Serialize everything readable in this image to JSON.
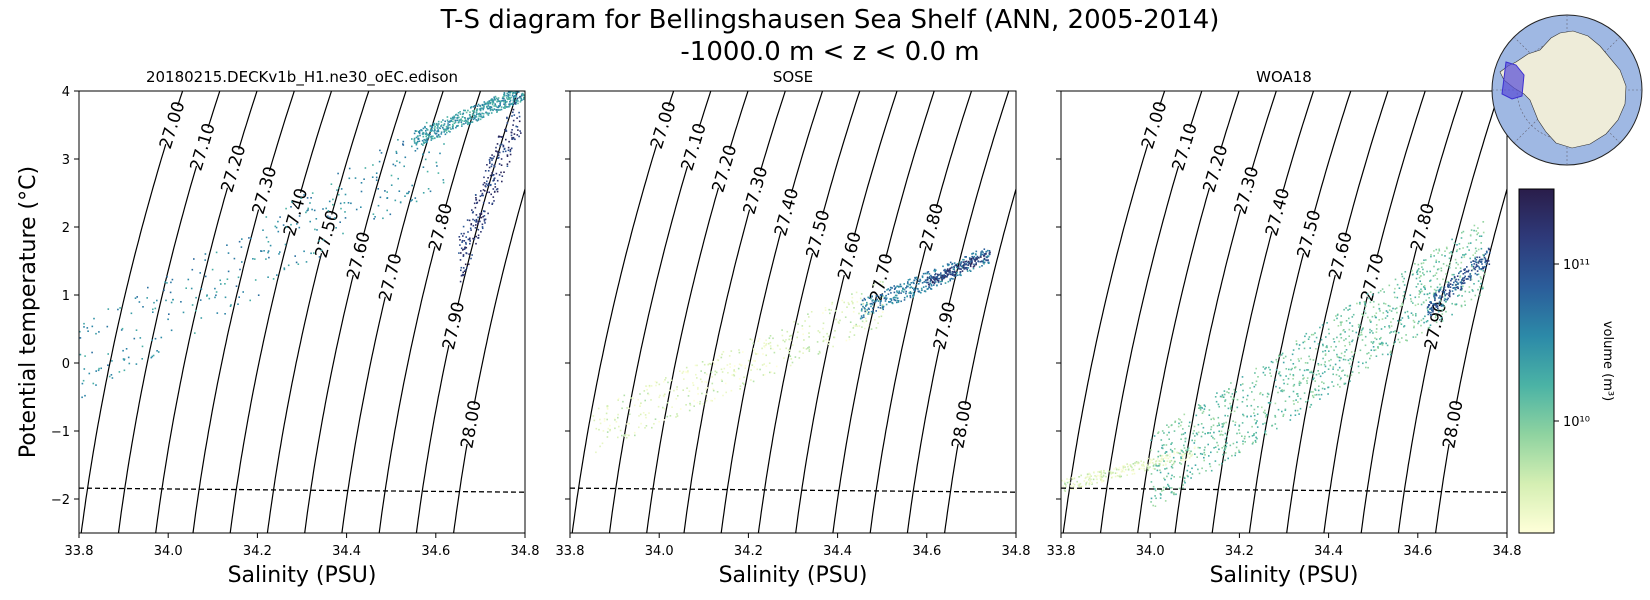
{
  "figure": {
    "title_line1": "T-S diagram for Bellingshausen Sea Shelf (ANN, 2005-2014)",
    "title_line2": "-1000.0 m < z < 0.0 m"
  },
  "chart_data": [
    {
      "type": "scatter",
      "title": "20180215.DECKv1b_H1.ne30_oEC.edison",
      "xlabel": "Salinity (PSU)",
      "ylabel": "Potential temperature (°C)",
      "xlim": [
        33.8,
        34.8
      ],
      "ylim": [
        -2.5,
        4.0
      ],
      "xticks": [
        "33.8",
        "34.0",
        "34.2",
        "34.4",
        "34.6",
        "34.8"
      ],
      "yticks": [
        "−2",
        "−1",
        "0",
        "1",
        "2",
        "3",
        "4"
      ],
      "freezing_line": [
        [
          33.8,
          -1.84
        ],
        [
          34.8,
          -1.9
        ]
      ],
      "density_contours": [
        "27.00",
        "27.10",
        "27.20",
        "27.30",
        "27.40",
        "27.50",
        "27.60",
        "27.70",
        "27.80",
        "27.90",
        "28.00"
      ],
      "point_clusters": [
        {
          "s": [
            33.8,
            34.62
          ],
          "t": [
            0.0,
            3.2
          ],
          "volume_level": 0.55,
          "n": 320
        },
        {
          "s": [
            34.55,
            34.8
          ],
          "t": [
            3.3,
            4.0
          ],
          "volume_level": 0.5,
          "n": 500
        },
        {
          "s": [
            34.65,
            34.79
          ],
          "t": [
            1.5,
            3.8
          ],
          "volume_level": 0.85,
          "n": 260
        }
      ]
    },
    {
      "type": "scatter",
      "title": "SOSE",
      "xlabel": "Salinity (PSU)",
      "xlim": [
        33.8,
        34.8
      ],
      "ylim": [
        -2.5,
        4.0
      ],
      "xticks": [
        "33.8",
        "34.0",
        "34.2",
        "34.4",
        "34.6",
        "34.8"
      ],
      "freezing_line": [
        [
          33.8,
          -1.84
        ],
        [
          34.8,
          -1.9
        ]
      ],
      "density_contours": [
        "27.00",
        "27.10",
        "27.20",
        "27.30",
        "27.40",
        "27.50",
        "27.60",
        "27.70",
        "27.80",
        "27.90",
        "28.00"
      ],
      "point_clusters": [
        {
          "s": [
            33.85,
            34.5
          ],
          "t": [
            -1.0,
            0.9
          ],
          "volume_level": 0.1,
          "n": 420
        },
        {
          "s": [
            34.45,
            34.74
          ],
          "t": [
            0.8,
            1.6
          ],
          "volume_level": 0.6,
          "n": 380
        },
        {
          "s": [
            34.6,
            34.74
          ],
          "t": [
            1.2,
            1.6
          ],
          "volume_level": 0.85,
          "n": 160
        }
      ]
    },
    {
      "type": "scatter",
      "title": "WOA18",
      "xlabel": "Salinity (PSU)",
      "xlim": [
        33.8,
        34.8
      ],
      "ylim": [
        -2.5,
        4.0
      ],
      "xticks": [
        "33.8",
        "34.0",
        "34.2",
        "34.4",
        "34.6",
        "34.8"
      ],
      "freezing_line": [
        [
          33.8,
          -1.84
        ],
        [
          34.8,
          -1.9
        ]
      ],
      "density_contours": [
        "27.00",
        "27.10",
        "27.20",
        "27.30",
        "27.40",
        "27.50",
        "27.60",
        "27.70",
        "27.80",
        "27.90",
        "28.00"
      ],
      "point_clusters": [
        {
          "s": [
            33.8,
            34.1
          ],
          "t": [
            -1.8,
            -1.3
          ],
          "volume_level": 0.1,
          "n": 260
        },
        {
          "s": [
            34.0,
            34.75
          ],
          "t": [
            -1.6,
            1.6
          ],
          "volume_level": 0.35,
          "n": 1100
        },
        {
          "s": [
            34.62,
            34.76
          ],
          "t": [
            0.8,
            1.6
          ],
          "volume_level": 0.75,
          "n": 220
        }
      ]
    }
  ],
  "colorbar": {
    "label": "volume (m³)",
    "tick_top": "10¹¹",
    "tick_bottom": "10¹⁰",
    "colors": [
      "#ffffd9",
      "#d5efb3",
      "#8fd3a0",
      "#4bb3a5",
      "#2c8aa8",
      "#2b5d9a",
      "#2e3a7a",
      "#2a1d4a"
    ]
  },
  "inset_map": {
    "ocean_color": "#9fb8e3",
    "land_color": "#eeecd9",
    "region_color": "#5a4fd6"
  }
}
